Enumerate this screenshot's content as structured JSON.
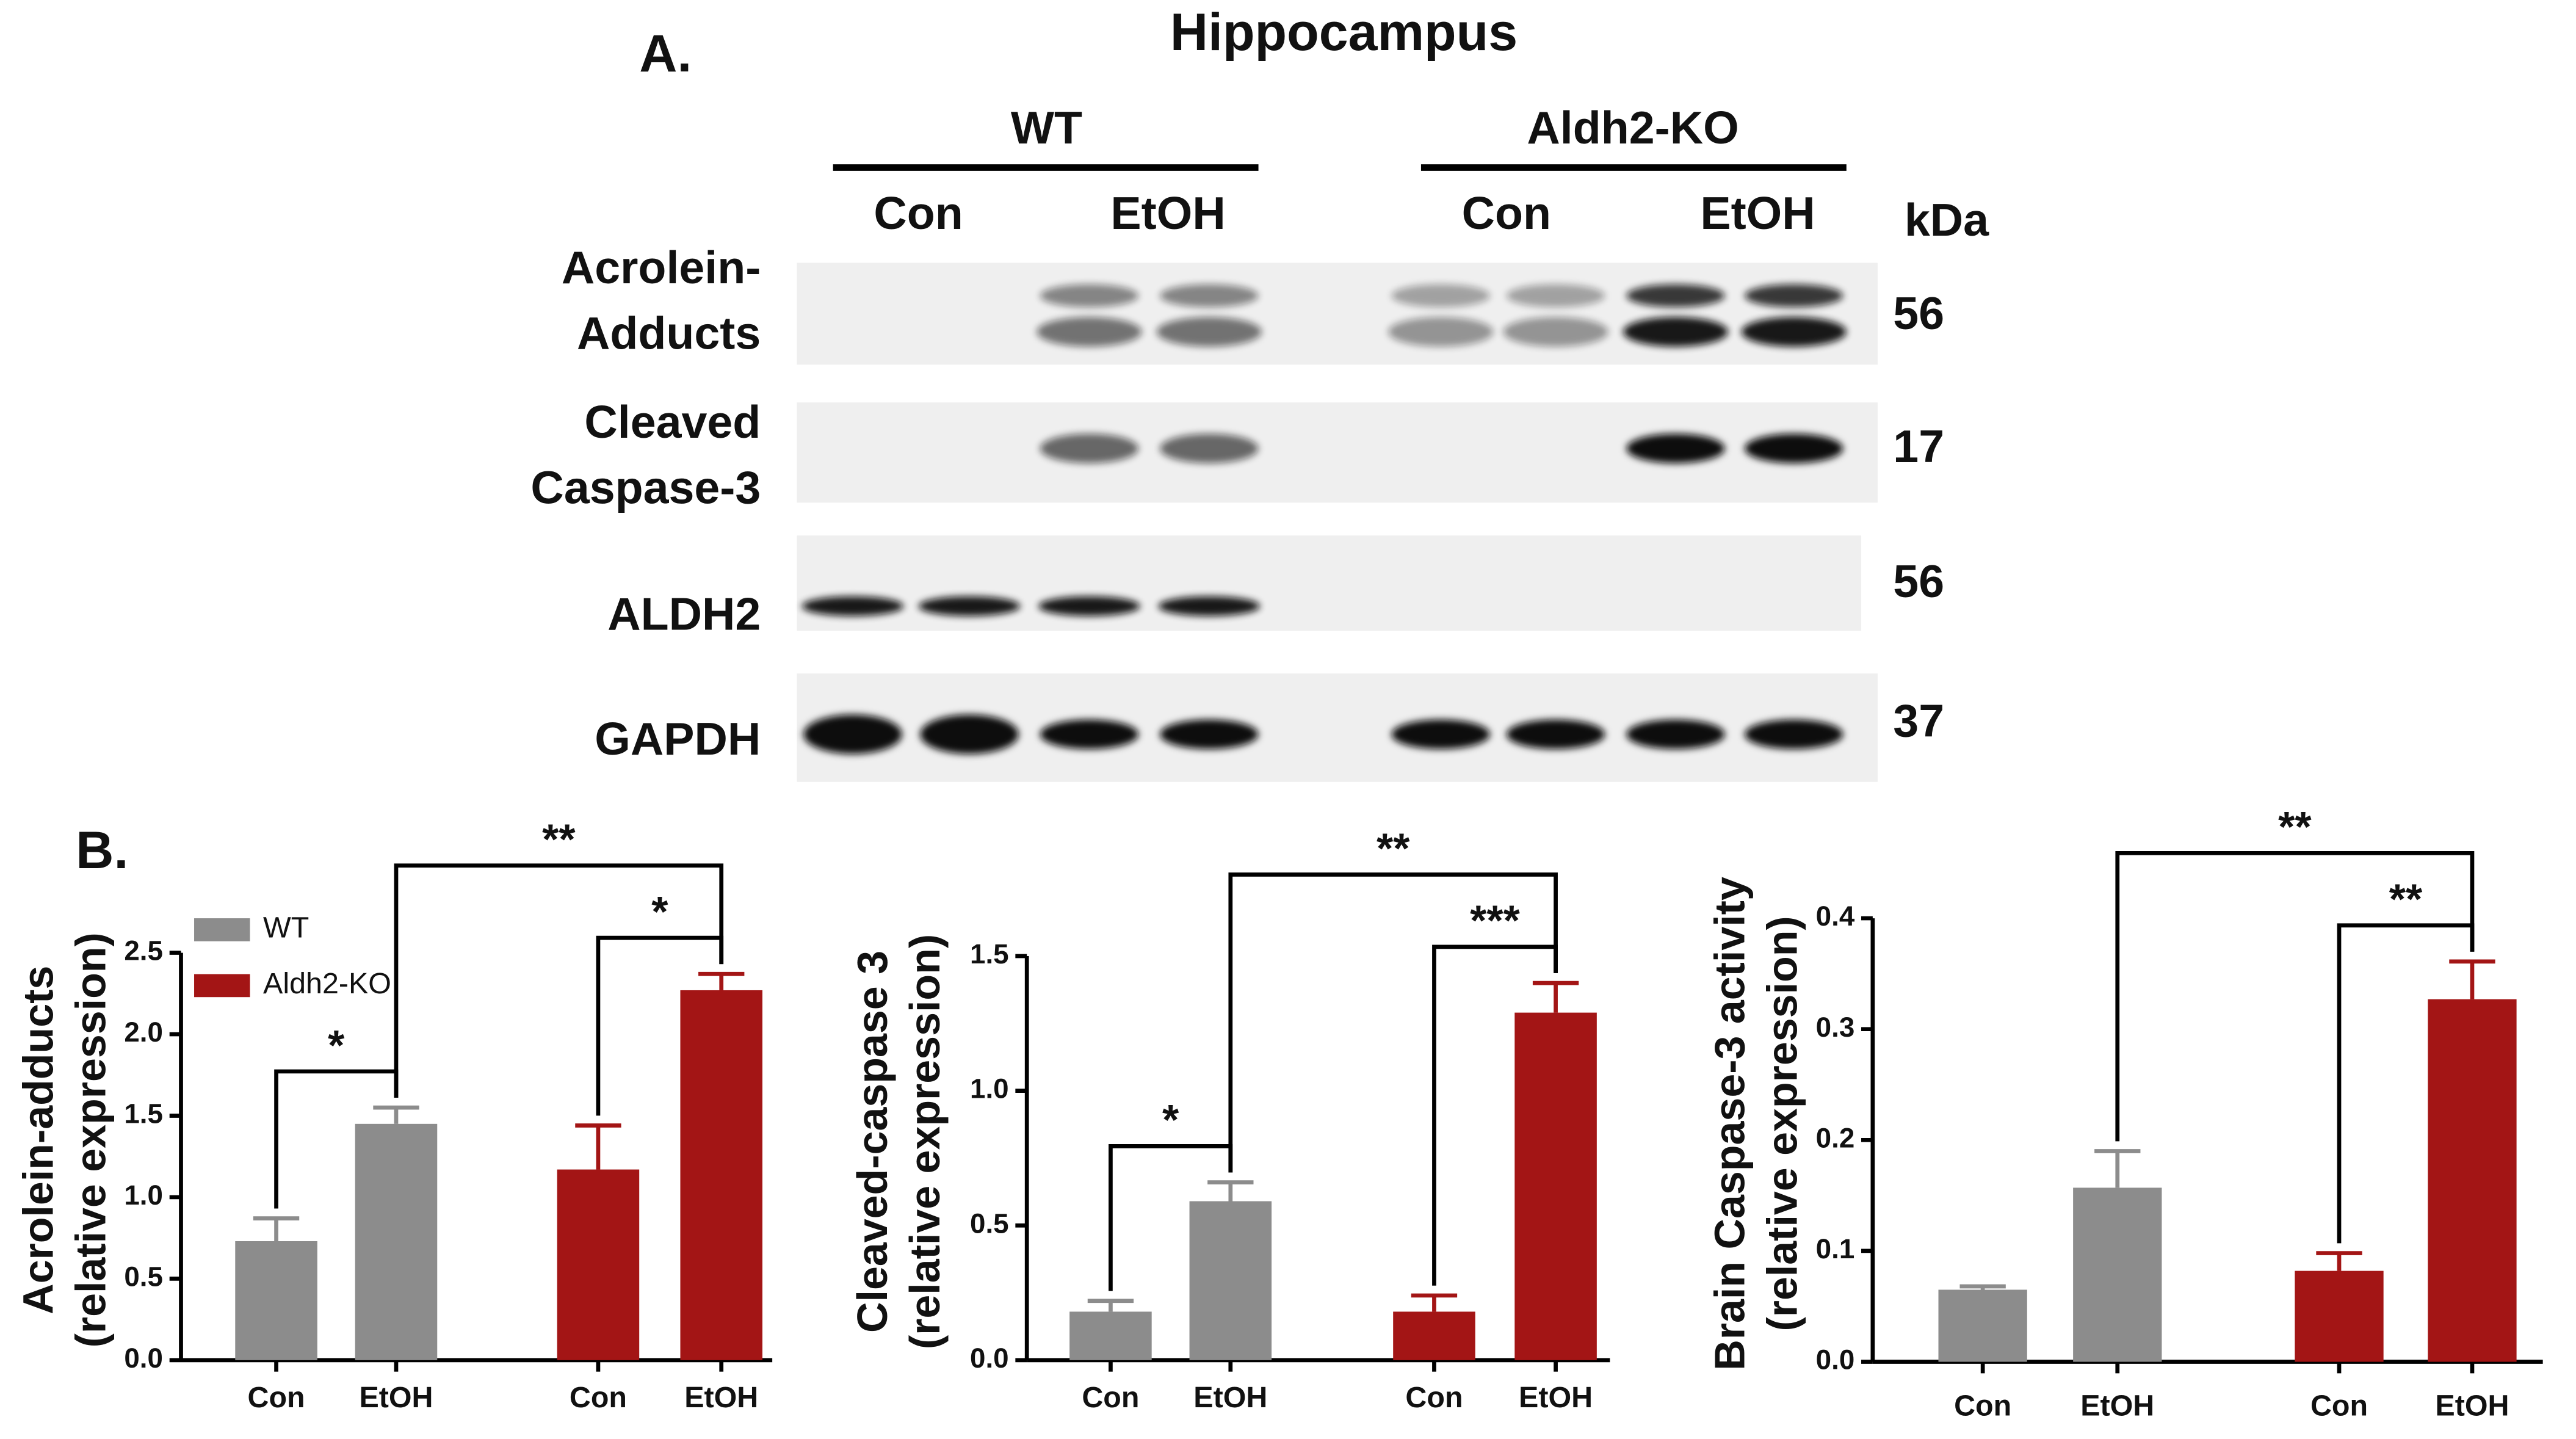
{
  "blot": {
    "panel": "A.",
    "title": "Hippocampus",
    "groups": [
      "WT",
      "Aldh2-KO"
    ],
    "lanes": [
      "Con",
      "EtOH",
      "Con",
      "EtOH"
    ],
    "kda_header": "kDa",
    "rows": [
      {
        "label": [
          "Acrolein-",
          "Adducts"
        ],
        "kda": "56"
      },
      {
        "label": [
          "Cleaved",
          "Caspase-3"
        ],
        "kda": "17"
      },
      {
        "label": [
          "ALDH2"
        ],
        "kda": "56"
      },
      {
        "label": [
          "GAPDH"
        ],
        "kda": "37"
      }
    ]
  },
  "panel_b": "B.",
  "chart_data": [
    {
      "type": "bar",
      "ylabel": [
        "Acrolein-adducts",
        "(relative expression)"
      ],
      "categories": [
        "Con",
        "EtOH",
        "Con",
        "EtOH"
      ],
      "series": [
        {
          "name": "WT",
          "color": "#8c8c8c",
          "values": [
            0.73,
            1.45,
            null,
            null
          ],
          "errors": [
            0.14,
            0.1,
            null,
            null
          ]
        },
        {
          "name": "Aldh2-KO",
          "color": "#a31515",
          "values": [
            null,
            null,
            1.17,
            2.27
          ],
          "errors": [
            null,
            null,
            0.27,
            0.1
          ]
        }
      ],
      "ylim": [
        0,
        2.5
      ],
      "yticks": [
        {
          "value": 0,
          "label": "0.0"
        },
        0.5,
        {
          "value": 1,
          "label": "1.0"
        },
        1.5,
        {
          "value": 2,
          "label": "2.0"
        },
        2.5
      ],
      "legend": "upper left",
      "annotations": [
        {
          "text": "*",
          "between": [
            0,
            1
          ]
        },
        {
          "text": "**",
          "between": [
            1,
            3
          ]
        },
        {
          "text": "*",
          "between": [
            2,
            3
          ]
        }
      ]
    },
    {
      "type": "bar",
      "ylabel": [
        "Cleaved-caspase 3",
        "(relative expression)"
      ],
      "categories": [
        "Con",
        "EtOH",
        "Con",
        "EtOH"
      ],
      "series": [
        {
          "color": "#8c8c8c",
          "values": [
            0.18,
            0.59,
            null,
            null
          ],
          "errors": [
            0.04,
            0.07,
            null,
            null
          ]
        },
        {
          "color": "#a31515",
          "values": [
            null,
            null,
            0.18,
            1.29
          ],
          "errors": [
            null,
            null,
            0.06,
            0.11
          ]
        }
      ],
      "ylim": [
        0,
        1.5
      ],
      "yticks": [
        {
          "value": 0,
          "label": "0.0"
        },
        0.5,
        {
          "value": 1,
          "label": "1.0"
        },
        1.5
      ],
      "annotations": [
        {
          "text": "*",
          "between": [
            0,
            1
          ]
        },
        {
          "text": "**",
          "between": [
            1,
            3
          ]
        },
        {
          "text": "***",
          "between": [
            2,
            3
          ]
        }
      ]
    },
    {
      "type": "bar",
      "ylabel": [
        "Brain Caspase-3 activity",
        "(relative expression)"
      ],
      "categories": [
        "Con",
        "EtOH",
        "Con",
        "EtOH"
      ],
      "series": [
        {
          "color": "#8c8c8c",
          "values": [
            0.065,
            0.157,
            null,
            null
          ],
          "errors": [
            0.003,
            0.033,
            null,
            null
          ]
        },
        {
          "color": "#a31515",
          "values": [
            null,
            null,
            0.082,
            0.327
          ],
          "errors": [
            null,
            null,
            0.016,
            0.034
          ]
        }
      ],
      "ylim": [
        0,
        0.4
      ],
      "yticks": [
        {
          "value": 0,
          "label": "0.0"
        },
        0.1,
        0.2,
        0.3,
        0.4
      ],
      "annotations": [
        {
          "text": "**",
          "between": [
            1,
            3
          ]
        },
        {
          "text": "**",
          "between": [
            2,
            3
          ]
        }
      ]
    }
  ]
}
